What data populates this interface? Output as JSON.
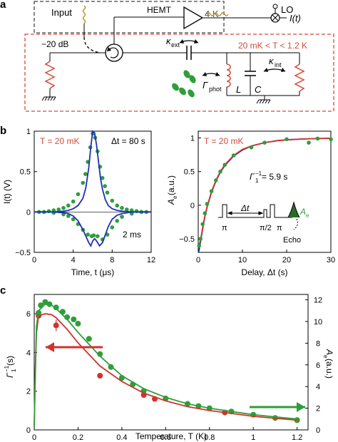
{
  "panel_labels": {
    "a": "a",
    "b": "b",
    "c": "c"
  },
  "circuit": {
    "input_label": "Input",
    "hemt_label": "HEMT",
    "box_4k_label": "4 K",
    "lo_label": "LO",
    "output_label": "I(t)",
    "attenuator_label": "−20 dB",
    "temp_range_label": "20 mK < T < 1.2 K",
    "kappa_ext_label": "κ",
    "kappa_ext_sub": "ext",
    "kappa_int_label": "κ",
    "kappa_int_sub": "int",
    "gamma_phot_label": "Γ",
    "gamma_phot_sub": "phot",
    "inductor_label": "L",
    "capacitor_label": "C",
    "colors": {
      "box_4k": "#444444",
      "box_mk": "#d24a3a",
      "resistor": "#d24a3a",
      "spins": "#2e9e3a"
    }
  },
  "chart_data": [
    {
      "type": "line",
      "id": "echo-signal",
      "annotations": [
        "T = 20 mK",
        "Δt = 80 s",
        "2 ms"
      ],
      "xlabel": "Time, t (μs)",
      "ylabel": "I(t) (V)",
      "xlim": [
        0,
        12
      ],
      "ylim": [
        -0.5,
        1.0
      ],
      "xticks": [
        0,
        4,
        8,
        12
      ],
      "yticks": [
        -0.5,
        0,
        0.5,
        1.0
      ],
      "series": [
        {
          "style": "markers",
          "color": "#2e9e3a",
          "x": [
            0.5,
            1.0,
            1.5,
            2.0,
            2.5,
            3.0,
            3.5,
            4.0,
            4.5,
            5.0,
            5.25,
            5.5,
            5.75,
            6.0,
            6.25,
            6.5,
            6.75,
            7.0,
            7.25,
            7.5,
            8.0,
            8.5,
            9.0,
            9.5,
            10.0,
            10.5,
            11.0,
            11.5
          ],
          "y": [
            0.0,
            0.0,
            0.01,
            0.02,
            0.03,
            0.05,
            0.08,
            0.13,
            0.22,
            0.36,
            0.47,
            0.62,
            0.8,
            0.97,
            0.92,
            0.75,
            0.56,
            0.42,
            0.32,
            0.24,
            0.14,
            0.08,
            0.05,
            0.03,
            0.02,
            0.01,
            0.0,
            0.0
          ]
        },
        {
          "style": "markers",
          "color": "#2e9e3a",
          "x": [
            1.0,
            2.0,
            3.0,
            3.5,
            4.0,
            4.5,
            5.0,
            5.5,
            5.9,
            6.1,
            6.5,
            7.0,
            7.5,
            8.0,
            8.5,
            9.0,
            10.0,
            11.0
          ],
          "y": [
            0.0,
            -0.01,
            -0.03,
            -0.05,
            -0.09,
            -0.15,
            -0.22,
            -0.28,
            -0.3,
            -0.29,
            -0.3,
            -0.34,
            -0.28,
            -0.19,
            -0.11,
            -0.06,
            -0.02,
            0.0
          ]
        },
        {
          "style": "line",
          "color": "#1f2fb8",
          "x": [
            0.0,
            1.0,
            2.0,
            3.0,
            3.5,
            4.0,
            4.5,
            5.0,
            5.3,
            5.6,
            5.8,
            6.0,
            6.2,
            6.4,
            6.6,
            6.8,
            7.0,
            7.3,
            7.6,
            8.0,
            8.5,
            9.0,
            10.0,
            11.0,
            12.0
          ],
          "y": [
            0.0,
            0.0,
            0.0,
            0.01,
            0.02,
            0.04,
            0.08,
            0.17,
            0.3,
            0.55,
            0.8,
            1.0,
            0.98,
            0.82,
            0.62,
            0.42,
            0.28,
            0.15,
            0.08,
            0.04,
            0.02,
            0.01,
            0.0,
            0.0,
            0.0
          ]
        },
        {
          "style": "line",
          "color": "#1f2fb8",
          "x": [
            0.0,
            2.0,
            3.0,
            3.5,
            4.0,
            4.5,
            5.0,
            5.3,
            5.6,
            5.8,
            6.0,
            6.2,
            6.4,
            6.7,
            7.0,
            7.3,
            7.6,
            8.0,
            8.5,
            9.0,
            10.0,
            12.0
          ],
          "y": [
            0.0,
            0.0,
            -0.01,
            -0.02,
            -0.05,
            -0.11,
            -0.22,
            -0.3,
            -0.38,
            -0.42,
            -0.36,
            -0.33,
            -0.36,
            -0.42,
            -0.38,
            -0.28,
            -0.18,
            -0.09,
            -0.04,
            -0.02,
            0.0,
            0.0
          ]
        }
      ]
    },
    {
      "type": "line",
      "id": "echo-decay",
      "annotations": [
        "T = 20 mK",
        "Γ",
        "1",
        "−1",
        " = 5.9 s",
        "Δt",
        "π",
        "π/2",
        "π",
        "Echo",
        "A",
        "e"
      ],
      "xlabel": "Delay, Δt (s)",
      "ylabel": "A",
      "ylabel_sub": "e",
      "ylabel_unit": " (a.u.)",
      "xlim": [
        0,
        30
      ],
      "ylim": [
        -0.7,
        1.1
      ],
      "xticks": [
        0,
        10,
        20,
        30
      ],
      "yticks": [
        -0.5,
        0,
        0.5,
        1.0
      ],
      "series": [
        {
          "style": "markers",
          "color": "#2e9e3a",
          "x": [
            0.2,
            0.5,
            1.0,
            1.5,
            2.0,
            3.0,
            4.0,
            5.0,
            6.0,
            8.0,
            12.0,
            15.0,
            20.0,
            25.0,
            27.0,
            30.0
          ],
          "y": [
            -0.6,
            -0.5,
            -0.28,
            -0.12,
            0.02,
            0.21,
            0.37,
            0.5,
            0.6,
            0.74,
            0.86,
            0.93,
            0.98,
            0.93,
            0.99,
            0.98
          ]
        },
        {
          "style": "line",
          "color": "#d0342c",
          "x": [
            0.1,
            0.5,
            1.0,
            1.5,
            2.0,
            3.0,
            4.0,
            5.0,
            6.0,
            8.0,
            10.0,
            12.0,
            15.0,
            18.0,
            21.0,
            24.0,
            27.0,
            30.0
          ],
          "y": [
            -0.6,
            -0.53,
            -0.33,
            -0.16,
            -0.02,
            0.2,
            0.37,
            0.5,
            0.6,
            0.74,
            0.83,
            0.88,
            0.93,
            0.96,
            0.975,
            0.985,
            0.99,
            0.995
          ]
        },
        {
          "style": "line",
          "color": "#1f2fb8",
          "x": [
            0.1,
            0.5,
            1.0,
            1.5,
            2.0,
            3.0,
            4.0,
            5.0,
            6.0,
            8.0,
            10.0,
            12.0,
            15.0,
            18.0,
            21.0,
            24.0,
            27.0,
            30.0
          ],
          "y": [
            -0.7,
            -0.55,
            -0.35,
            -0.17,
            -0.03,
            0.19,
            0.36,
            0.49,
            0.59,
            0.73,
            0.82,
            0.88,
            0.93,
            0.96,
            0.975,
            0.985,
            0.99,
            0.995
          ]
        }
      ]
    },
    {
      "type": "scatter",
      "id": "temperature-dependence",
      "xlabel": "Temperature, T (K)",
      "ylabel_left": "Γ",
      "ylabel_left_sub": "1",
      "ylabel_left_sup": "−1",
      "ylabel_left_unit": " (s)",
      "ylabel_right": "A",
      "ylabel_right_sub": "e",
      "ylabel_right_unit": " (a.u.)",
      "xlim": [
        0,
        1.25
      ],
      "ylim_left": [
        0,
        7
      ],
      "ylim_right": [
        0,
        12.5
      ],
      "xticks": [
        0,
        0.2,
        0.4,
        0.6,
        0.8,
        1.0,
        1.2
      ],
      "yticks_left": [
        0,
        2,
        4,
        6
      ],
      "yticks_right": [
        0,
        2,
        4,
        6,
        8,
        10,
        12
      ],
      "series": [
        {
          "style": "markers",
          "color": "#d0342c",
          "axis": "left",
          "x": [
            0.02,
            0.1,
            0.3,
            0.5,
            0.55,
            0.87,
            1.2
          ],
          "y": [
            5.9,
            5.4,
            2.8,
            1.8,
            1.6,
            0.9,
            0.5
          ],
          "error": [
            0,
            0.3,
            0,
            0,
            0,
            0,
            0
          ]
        },
        {
          "style": "markers",
          "color": "#2e9e3a",
          "axis": "right",
          "x": [
            0.02,
            0.03,
            0.05,
            0.07,
            0.1,
            0.13,
            0.15,
            0.18,
            0.2,
            0.25,
            0.3,
            0.35,
            0.4,
            0.45,
            0.5,
            0.6,
            0.7,
            0.75,
            0.8,
            0.9,
            1.0,
            1.1,
            1.2
          ],
          "y": [
            10.8,
            11.5,
            11.8,
            11.6,
            11.3,
            10.9,
            10.4,
            10.2,
            9.8,
            8.4,
            7.0,
            5.8,
            4.8,
            4.2,
            3.6,
            2.9,
            2.4,
            2.2,
            2.0,
            1.7,
            1.4,
            1.1,
            0.9
          ]
        },
        {
          "style": "line",
          "color": "#d0342c",
          "axis": "left",
          "x": [
            0.0,
            0.005,
            0.01,
            0.02,
            0.05,
            0.08,
            0.1,
            0.15,
            0.2,
            0.3,
            0.4,
            0.5,
            0.6,
            0.7,
            0.8,
            0.9,
            1.0,
            1.1,
            1.2
          ],
          "y": [
            0.2,
            3.0,
            5.0,
            5.9,
            6.0,
            5.95,
            5.8,
            5.2,
            4.5,
            3.3,
            2.5,
            1.9,
            1.5,
            1.2,
            1.0,
            0.85,
            0.7,
            0.6,
            0.5
          ]
        },
        {
          "style": "line",
          "color": "#2e9e3a",
          "axis": "right",
          "x": [
            0.0,
            0.005,
            0.01,
            0.02,
            0.05,
            0.08,
            0.1,
            0.15,
            0.2,
            0.3,
            0.4,
            0.5,
            0.6,
            0.7,
            0.8,
            0.9,
            1.0,
            1.1,
            1.2
          ],
          "y": [
            0.3,
            5.0,
            9.5,
            11.0,
            11.6,
            11.5,
            11.2,
            10.2,
            9.0,
            6.8,
            5.0,
            3.8,
            3.0,
            2.4,
            2.0,
            1.7,
            1.4,
            1.2,
            1.0
          ]
        }
      ],
      "arrows": [
        {
          "direction": "left",
          "color": "#d0342c",
          "points_to_axis": "left"
        },
        {
          "direction": "right",
          "color": "#2e9e3a",
          "points_to_axis": "right"
        }
      ]
    }
  ]
}
